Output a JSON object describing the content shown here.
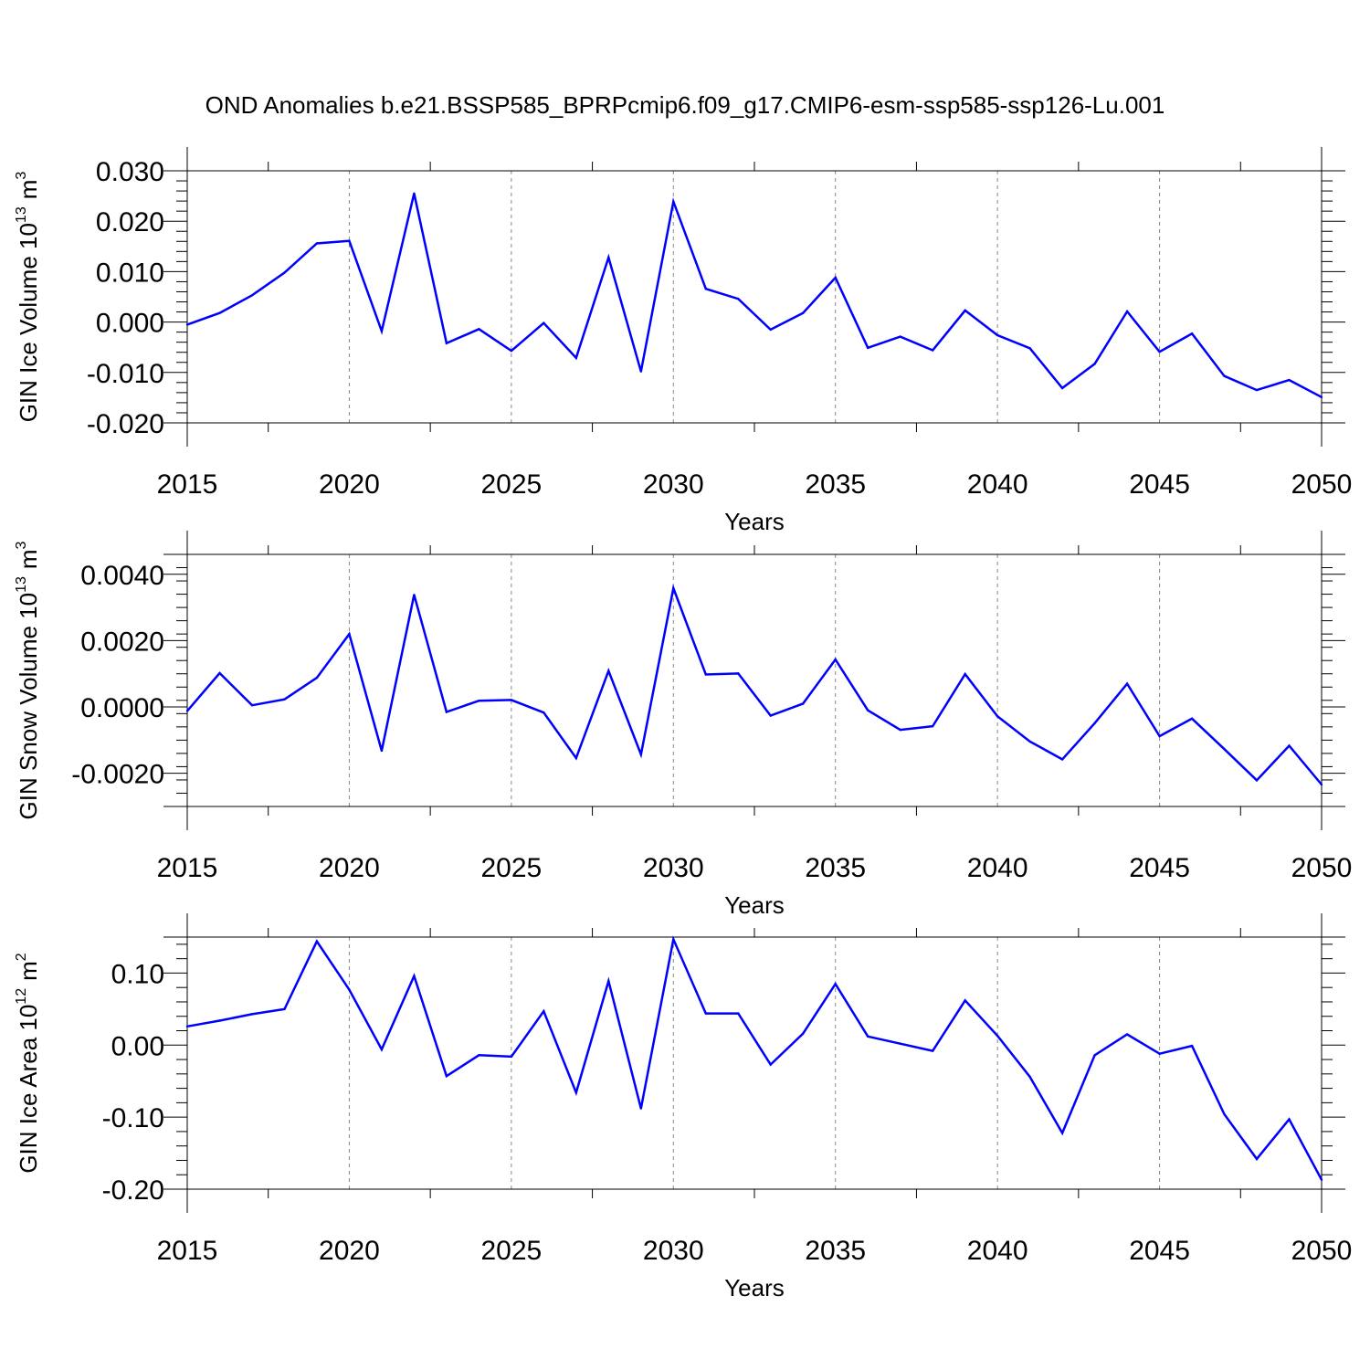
{
  "title": "OND Anomalies b.e21.BSSP585_BPRPcmip6.f09_g17.CMIP6-esm-ssp585-ssp126-Lu.001",
  "line_color": "#0000ff",
  "chart_data": [
    {
      "type": "line",
      "ylabel_main": "GIN Ice Volume 10",
      "ylabel_exp": "13",
      "ylabel_unit": "m",
      "ylabel_unit_exp": "3",
      "xlabel": "Years",
      "xlim": [
        2015,
        2050
      ],
      "ylim": [
        -0.02,
        0.03
      ],
      "yticks": [
        -0.02,
        -0.01,
        0.0,
        0.01,
        0.02,
        0.03
      ],
      "ytick_labels": [
        "-0.020",
        "-0.010",
        "0.000",
        "0.010",
        "0.020",
        "0.030"
      ],
      "xticks": [
        2015,
        2020,
        2025,
        2030,
        2035,
        2040,
        2045,
        2050
      ],
      "xtick_labels": [
        "2015",
        "2020",
        "2025",
        "2030",
        "2035",
        "2040",
        "2045",
        "2050"
      ],
      "x": [
        2015,
        2016,
        2017,
        2018,
        2019,
        2020,
        2021,
        2022,
        2023,
        2024,
        2025,
        2026,
        2027,
        2028,
        2029,
        2030,
        2031,
        2032,
        2033,
        2034,
        2035,
        2036,
        2037,
        2038,
        2039,
        2040,
        2041,
        2042,
        2043,
        2044,
        2045,
        2046,
        2047,
        2048,
        2049,
        2050
      ],
      "y": [
        -0.0005,
        0.0018,
        0.0053,
        0.0098,
        0.0156,
        0.0161,
        -0.0018,
        0.0255,
        -0.0042,
        -0.0014,
        -0.0057,
        -0.0002,
        -0.0071,
        0.0128,
        -0.0098,
        0.0239,
        0.0066,
        0.0046,
        -0.0015,
        0.0018,
        0.0088,
        -0.0051,
        -0.0029,
        -0.0056,
        0.0023,
        -0.0026,
        -0.0052,
        -0.0131,
        -0.0083,
        0.0021,
        -0.0059,
        -0.0023,
        -0.0107,
        -0.0135,
        -0.0115,
        -0.0149
      ],
      "grid": "vertical dashed"
    },
    {
      "type": "line",
      "ylabel_main": "GIN Snow Volume 10",
      "ylabel_exp": "13",
      "ylabel_unit": "m",
      "ylabel_unit_exp": "3",
      "xlabel": "Years",
      "xlim": [
        2015,
        2050
      ],
      "ylim": [
        -0.003,
        0.0046
      ],
      "yticks": [
        -0.002,
        0.0,
        0.002,
        0.004
      ],
      "ytick_labels": [
        "-0.0020",
        "0.0000",
        "0.0020",
        "0.0040"
      ],
      "xticks": [
        2015,
        2020,
        2025,
        2030,
        2035,
        2040,
        2045,
        2050
      ],
      "xtick_labels": [
        "2015",
        "2020",
        "2025",
        "2030",
        "2035",
        "2040",
        "2045",
        "2050"
      ],
      "x": [
        2015,
        2016,
        2017,
        2018,
        2019,
        2020,
        2021,
        2022,
        2023,
        2024,
        2025,
        2026,
        2027,
        2028,
        2029,
        2030,
        2031,
        2032,
        2033,
        2034,
        2035,
        2036,
        2037,
        2038,
        2039,
        2040,
        2041,
        2042,
        2043,
        2044,
        2045,
        2046,
        2047,
        2048,
        2049,
        2050
      ],
      "y": [
        -0.00012,
        0.00102,
        5e-05,
        0.00023,
        0.00088,
        0.0022,
        -0.00132,
        0.00338,
        -0.00015,
        0.00019,
        0.00021,
        -0.00017,
        -0.00154,
        0.00109,
        -0.00143,
        0.00358,
        0.00098,
        0.00101,
        -0.00026,
        0.0001,
        0.00143,
        -0.0001,
        -0.00069,
        -0.00058,
        0.00099,
        -0.00028,
        -0.00104,
        -0.00158,
        -0.00049,
        0.0007,
        -0.00088,
        -0.00035,
        -0.00127,
        -0.00221,
        -0.00117,
        -0.00234
      ],
      "grid": "vertical dashed"
    },
    {
      "type": "line",
      "ylabel_main": "GIN Ice Area 10",
      "ylabel_exp": "12",
      "ylabel_unit": "m",
      "ylabel_unit_exp": "2",
      "xlabel": "Years",
      "xlim": [
        2015,
        2050
      ],
      "ylim": [
        -0.2,
        0.15
      ],
      "yticks": [
        -0.2,
        -0.1,
        0.0,
        0.1
      ],
      "ytick_labels": [
        "-0.20",
        "-0.10",
        "0.00",
        "0.10"
      ],
      "xticks": [
        2015,
        2020,
        2025,
        2030,
        2035,
        2040,
        2045,
        2050
      ],
      "xtick_labels": [
        "2015",
        "2020",
        "2025",
        "2030",
        "2035",
        "2040",
        "2045",
        "2050"
      ],
      "x": [
        2015,
        2016,
        2017,
        2018,
        2019,
        2020,
        2021,
        2022,
        2023,
        2024,
        2025,
        2026,
        2027,
        2028,
        2029,
        2030,
        2031,
        2032,
        2033,
        2034,
        2035,
        2036,
        2037,
        2038,
        2039,
        2040,
        2041,
        2042,
        2043,
        2044,
        2045,
        2046,
        2047,
        2048,
        2049,
        2050
      ],
      "y": [
        0.026,
        0.034,
        0.043,
        0.05,
        0.144,
        0.077,
        -0.006,
        0.096,
        -0.043,
        -0.014,
        -0.016,
        0.047,
        -0.066,
        0.089,
        -0.088,
        0.147,
        0.044,
        0.044,
        -0.027,
        0.016,
        0.085,
        0.012,
        0.002,
        -0.008,
        0.062,
        0.013,
        -0.044,
        -0.122,
        -0.014,
        0.015,
        -0.012,
        -0.001,
        -0.096,
        -0.158,
        -0.103,
        -0.187
      ],
      "grid": "vertical dashed"
    }
  ]
}
